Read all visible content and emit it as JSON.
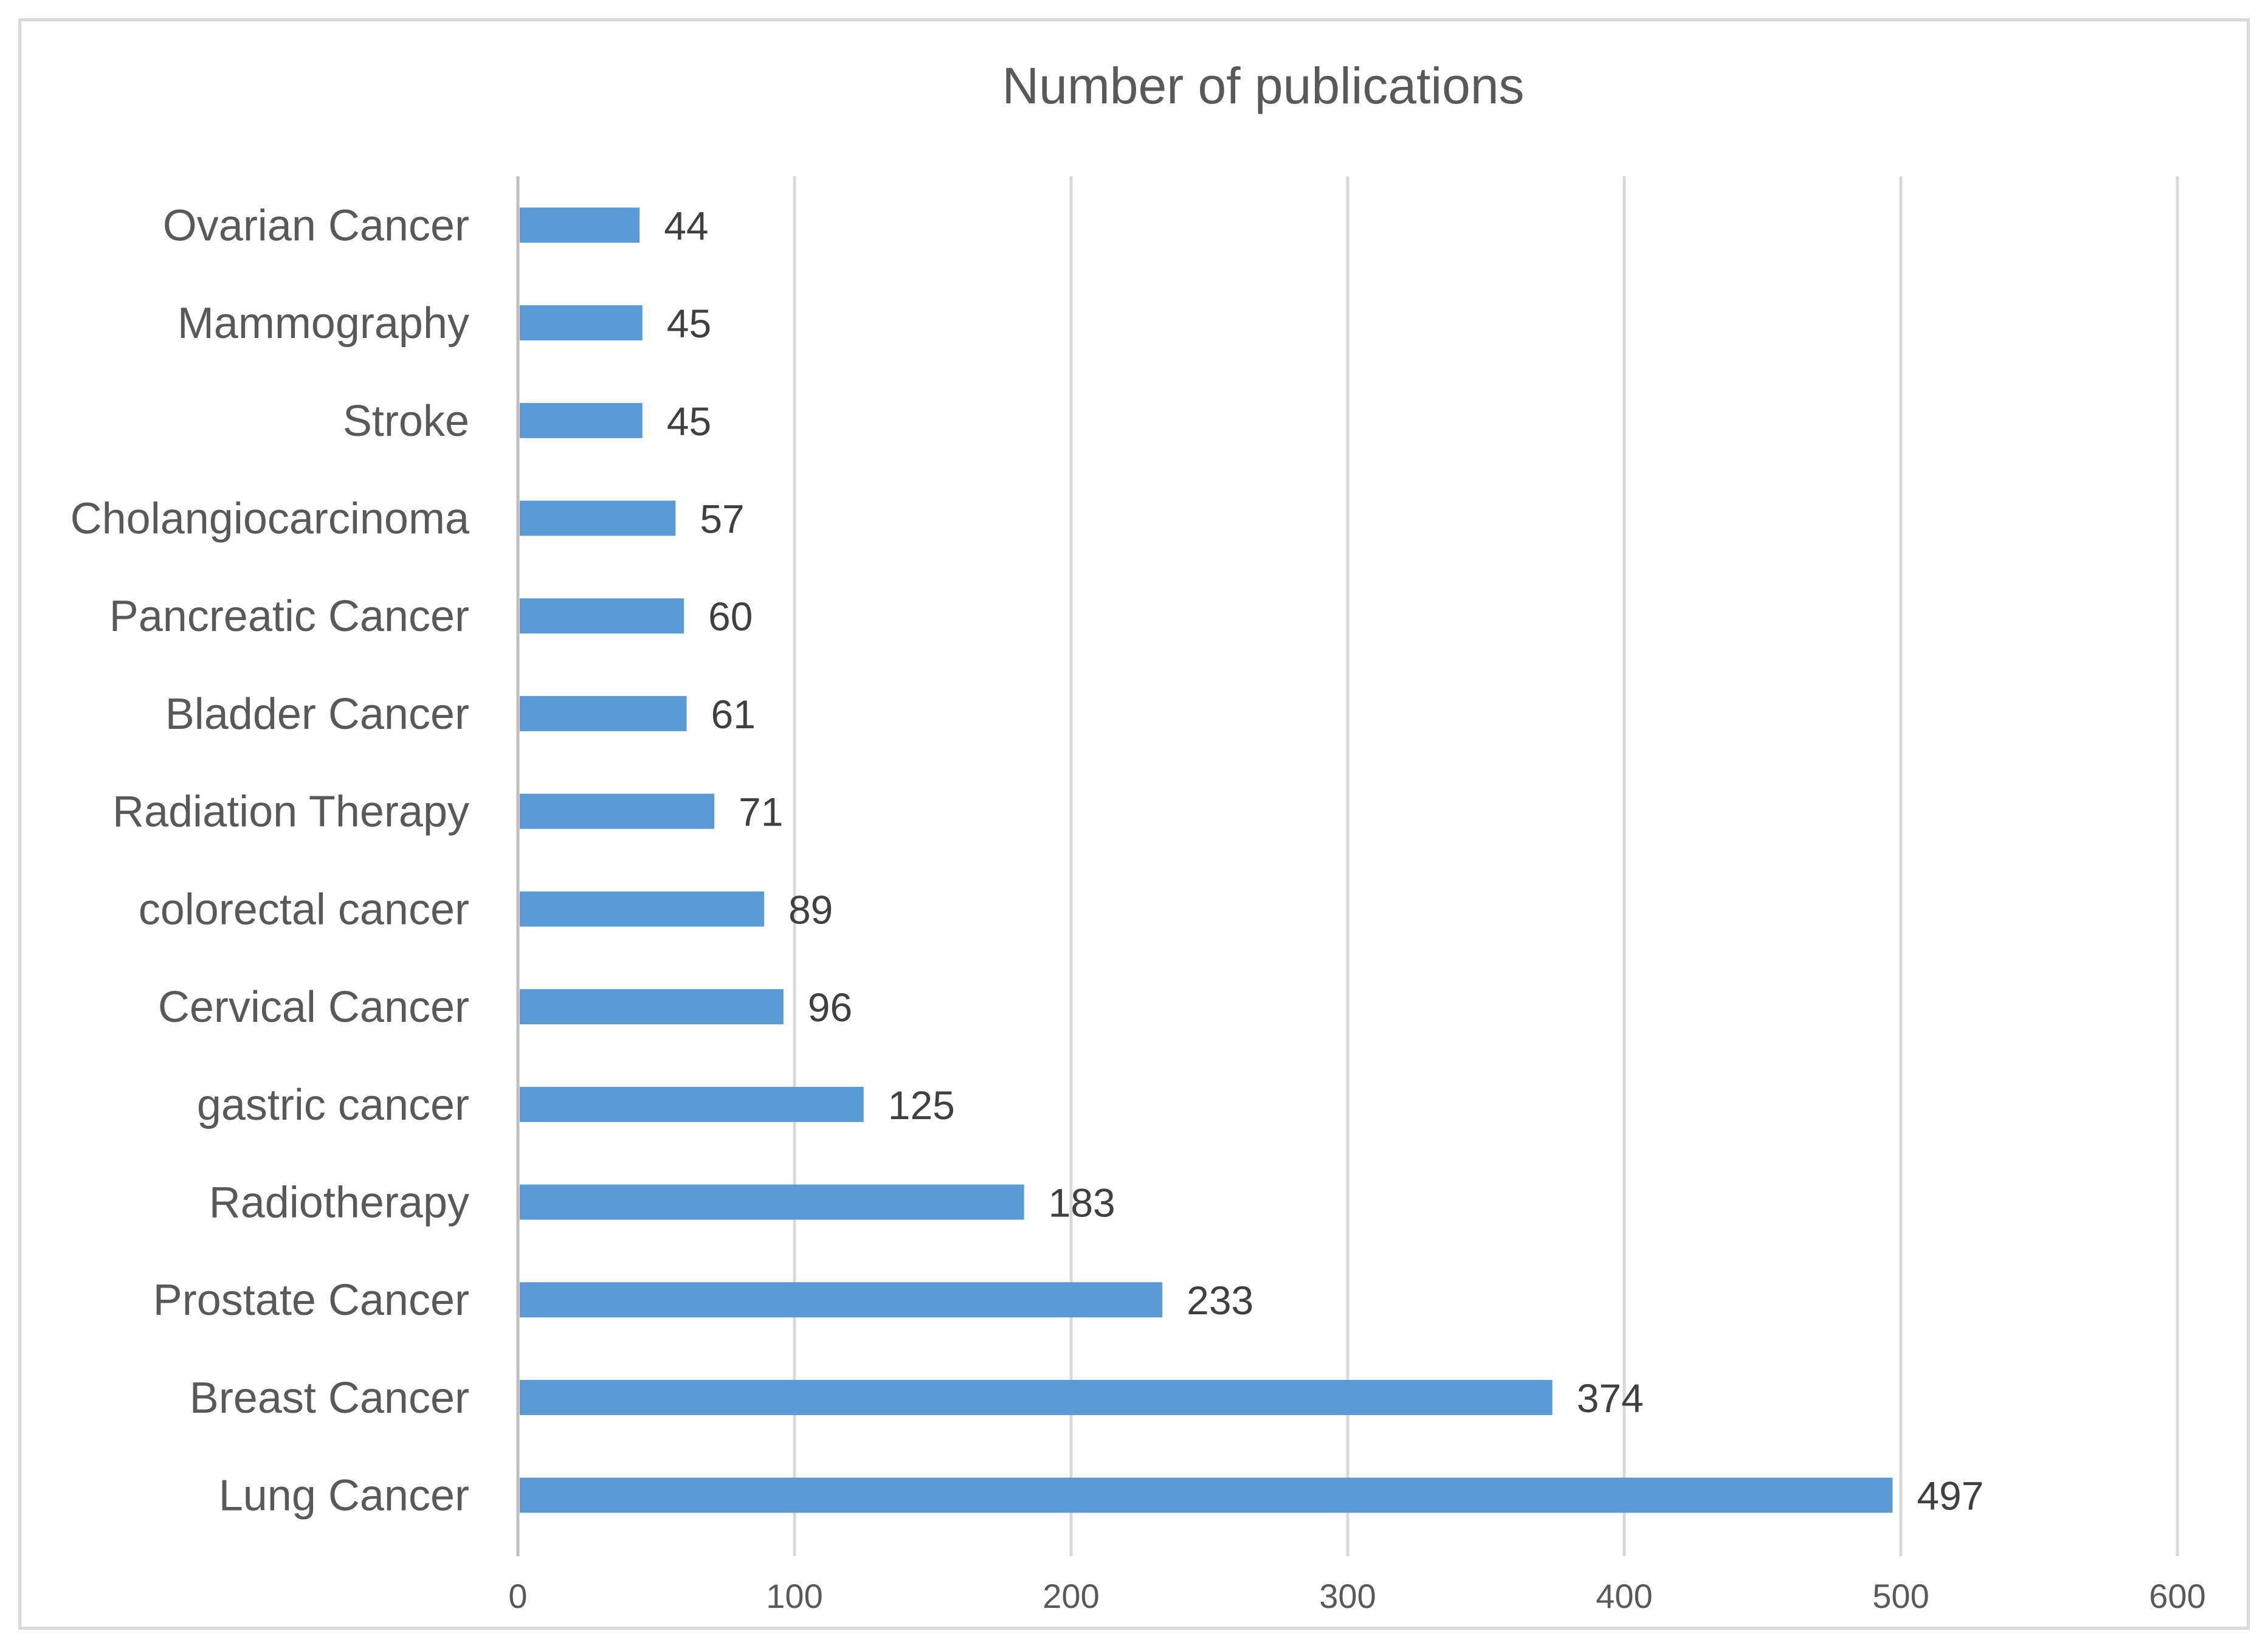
{
  "chart_data": {
    "type": "bar",
    "orientation": "horizontal",
    "title": "Number of publications",
    "categories": [
      "Ovarian Cancer",
      "Mammography",
      "Stroke",
      "Cholangiocarcinoma",
      "Pancreatic Cancer",
      "Bladder Cancer",
      "Radiation Therapy",
      "colorectal cancer",
      "Cervical Cancer",
      "gastric cancer",
      "Radiotherapy",
      "Prostate Cancer",
      "Breast Cancer",
      "Lung Cancer"
    ],
    "values": [
      44,
      45,
      45,
      57,
      60,
      61,
      71,
      89,
      96,
      125,
      183,
      233,
      374,
      497
    ],
    "xlim": [
      0,
      600
    ],
    "xticks": [
      "0",
      "100",
      "200",
      "300",
      "400",
      "500",
      "600"
    ],
    "xlabel": "",
    "ylabel": "",
    "grid": "vertical",
    "data_labels": true,
    "bar_color": "#5b9bd5"
  }
}
